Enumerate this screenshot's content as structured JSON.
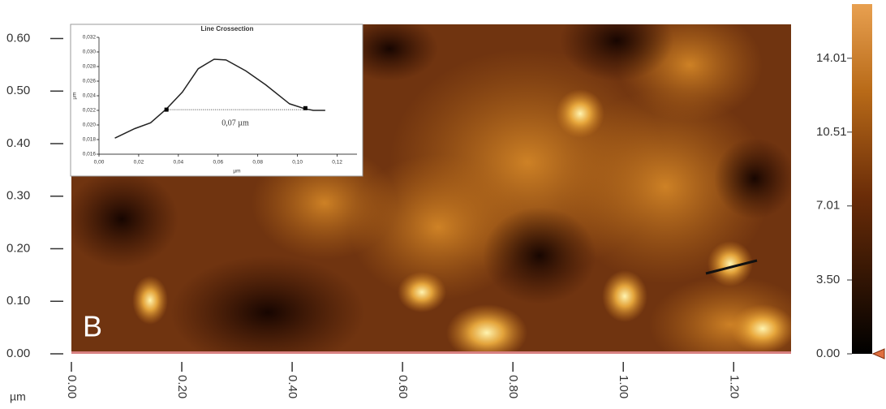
{
  "chart_data": [
    {
      "type": "heatmap",
      "annotation": "B",
      "x_unit_label": "µm",
      "xlim": [
        0,
        1.304
      ],
      "ylim": [
        0,
        0.627
      ],
      "xticks": [
        {
          "value": 0,
          "label": "0.00"
        },
        {
          "value": 0.2,
          "label": "0.20"
        },
        {
          "value": 0.4,
          "label": "0.40"
        },
        {
          "value": 0.6,
          "label": "0.60"
        },
        {
          "value": 0.8,
          "label": "0.80"
        },
        {
          "value": 1,
          "label": "1.00"
        },
        {
          "value": 1.2,
          "label": "1.20"
        }
      ],
      "yticks": [
        {
          "value": 0,
          "label": "0.00"
        },
        {
          "value": 0.1,
          "label": "0.10"
        },
        {
          "value": 0.2,
          "label": "0.20"
        },
        {
          "value": 0.3,
          "label": "0.30"
        },
        {
          "value": 0.4,
          "label": "0.40"
        },
        {
          "value": 0.5,
          "label": "0.50"
        },
        {
          "value": 0.6,
          "label": "0.60"
        }
      ],
      "colorbar": {
        "lim": [
          0,
          16.58
        ],
        "ticks": [
          {
            "value": 0,
            "label": "0.00"
          },
          {
            "value": 3.5,
            "label": "3.50"
          },
          7.01,
          10.51,
          14.01
        ]
      }
    },
    {
      "type": "line",
      "title": "Line Crossection",
      "x_label": "µm",
      "y_label": "µm",
      "annotation": "0,07 µm",
      "x": [
        0.008,
        0.018,
        0.026,
        0.034,
        0.042,
        0.05,
        0.058,
        0.064,
        0.074,
        0.084,
        0.096,
        0.104,
        0.108,
        0.114
      ],
      "values": [
        0.0182,
        0.0195,
        0.0203,
        0.0222,
        0.0245,
        0.0277,
        0.029,
        0.0289,
        0.0274,
        0.0255,
        0.0229,
        0.0222,
        0.022,
        0.022
      ],
      "cursors": {
        "x": [
          0.034,
          0.104
        ],
        "y": [
          0.0221,
          0.0223
        ]
      },
      "color": "#222222",
      "xlim": [
        0,
        0.13
      ],
      "ylim": [
        0.016,
        0.032
      ],
      "xticks": [
        {
          "value": 0,
          "label": "0,00"
        },
        {
          "value": 0.02,
          "label": "0,02"
        },
        {
          "value": 0.04,
          "label": "0,04"
        },
        {
          "value": 0.06,
          "label": "0,06"
        },
        {
          "value": 0.08,
          "label": "0,08"
        },
        {
          "value": 0.1,
          "label": "0,10"
        },
        {
          "value": 0.12,
          "label": "0,12"
        }
      ],
      "yticks": [
        {
          "value": 0.016,
          "label": "0,016"
        },
        {
          "value": 0.018,
          "label": "0,018"
        },
        {
          "value": 0.02,
          "label": "0,020"
        },
        {
          "value": 0.022,
          "label": "0,022"
        },
        {
          "value": 0.024,
          "label": "0,024"
        },
        {
          "value": 0.026,
          "label": "0,026"
        },
        {
          "value": 0.028,
          "label": "0,028"
        },
        {
          "value": 0.03,
          "label": "0,030"
        },
        {
          "value": 0.032,
          "label": "0,032"
        }
      ]
    }
  ]
}
